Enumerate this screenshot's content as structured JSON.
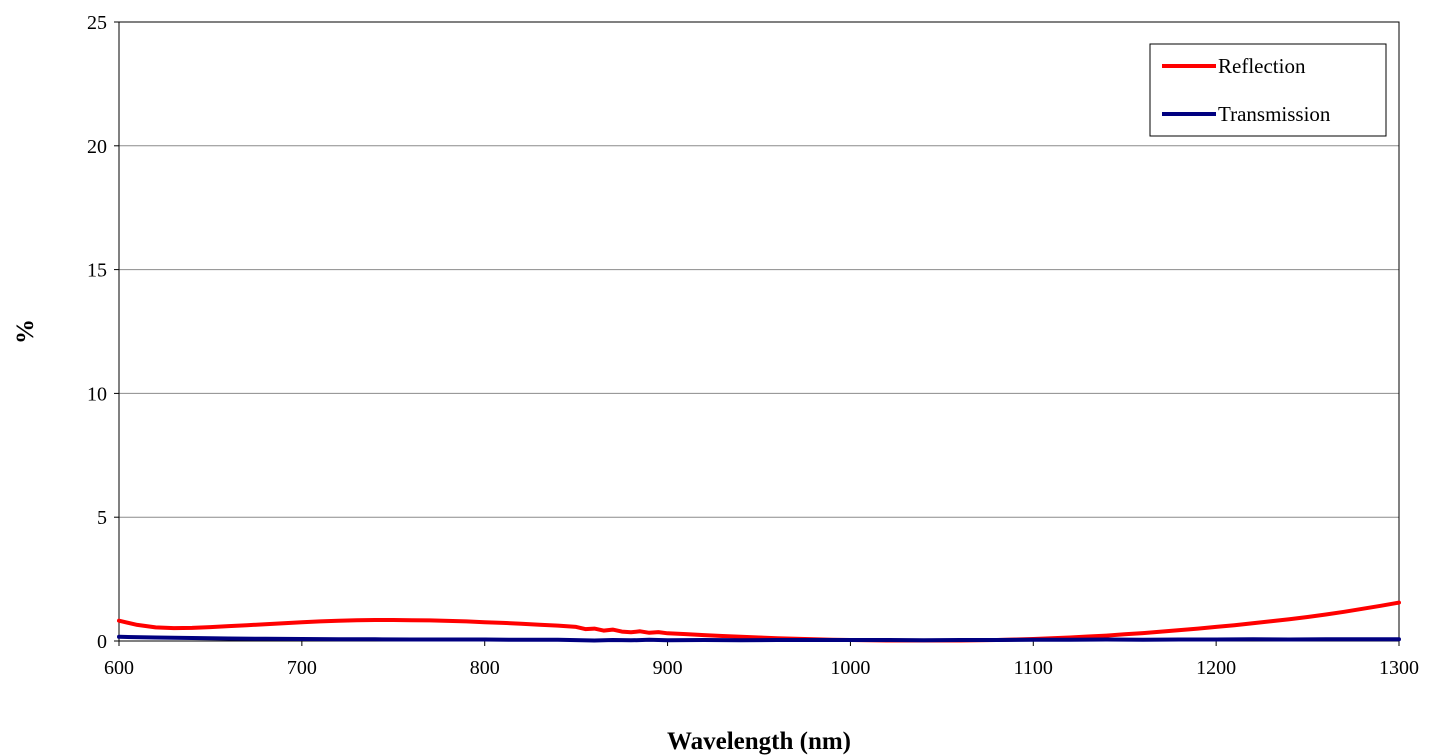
{
  "chart_data": {
    "type": "line",
    "title": "",
    "xlabel": "Wavelength (nm)",
    "ylabel": "%",
    "xlim": [
      600,
      1300
    ],
    "ylim": [
      0,
      25
    ],
    "xticks": [
      600,
      700,
      800,
      900,
      1000,
      1100,
      1200,
      1300
    ],
    "yticks": [
      0,
      5,
      10,
      15,
      20,
      25
    ],
    "grid": "horizontal",
    "legend_position": "top-right",
    "series": [
      {
        "name": "Reflection",
        "color": "#ff0000",
        "x": [
          600,
          610,
          620,
          630,
          640,
          650,
          660,
          670,
          680,
          690,
          700,
          710,
          720,
          730,
          740,
          750,
          760,
          770,
          780,
          790,
          800,
          810,
          820,
          830,
          840,
          850,
          855,
          860,
          865,
          870,
          875,
          880,
          885,
          890,
          895,
          900,
          910,
          920,
          930,
          940,
          950,
          960,
          970,
          980,
          990,
          1000,
          1010,
          1020,
          1030,
          1040,
          1050,
          1060,
          1070,
          1080,
          1090,
          1100,
          1110,
          1120,
          1130,
          1140,
          1150,
          1160,
          1170,
          1180,
          1190,
          1200,
          1210,
          1220,
          1230,
          1240,
          1250,
          1260,
          1270,
          1280,
          1290,
          1300
        ],
        "values": [
          0.82,
          0.65,
          0.55,
          0.52,
          0.53,
          0.56,
          0.6,
          0.64,
          0.68,
          0.72,
          0.76,
          0.79,
          0.82,
          0.84,
          0.85,
          0.85,
          0.84,
          0.83,
          0.81,
          0.79,
          0.76,
          0.73,
          0.7,
          0.66,
          0.62,
          0.57,
          0.48,
          0.5,
          0.42,
          0.46,
          0.38,
          0.35,
          0.39,
          0.33,
          0.36,
          0.31,
          0.28,
          0.24,
          0.2,
          0.17,
          0.14,
          0.11,
          0.09,
          0.07,
          0.05,
          0.04,
          0.03,
          0.02,
          0.02,
          0.02,
          0.02,
          0.02,
          0.03,
          0.04,
          0.06,
          0.08,
          0.11,
          0.14,
          0.18,
          0.22,
          0.27,
          0.32,
          0.38,
          0.44,
          0.5,
          0.57,
          0.64,
          0.72,
          0.8,
          0.88,
          0.97,
          1.07,
          1.18,
          1.3,
          1.42,
          1.55
        ]
      },
      {
        "name": "Transmission",
        "color": "#000080",
        "x": [
          600,
          620,
          640,
          660,
          680,
          700,
          720,
          740,
          760,
          780,
          800,
          820,
          840,
          860,
          870,
          880,
          890,
          900,
          920,
          940,
          960,
          980,
          1000,
          1020,
          1040,
          1060,
          1080,
          1100,
          1120,
          1140,
          1160,
          1180,
          1200,
          1220,
          1240,
          1260,
          1280,
          1300
        ],
        "values": [
          0.17,
          0.14,
          0.12,
          0.1,
          0.09,
          0.08,
          0.07,
          0.07,
          0.06,
          0.06,
          0.06,
          0.05,
          0.05,
          0.02,
          0.04,
          0.03,
          0.05,
          0.03,
          0.04,
          0.03,
          0.04,
          0.04,
          0.04,
          0.04,
          0.03,
          0.04,
          0.04,
          0.05,
          0.05,
          0.06,
          0.05,
          0.06,
          0.06,
          0.07,
          0.06,
          0.07,
          0.07,
          0.07
        ]
      }
    ]
  }
}
